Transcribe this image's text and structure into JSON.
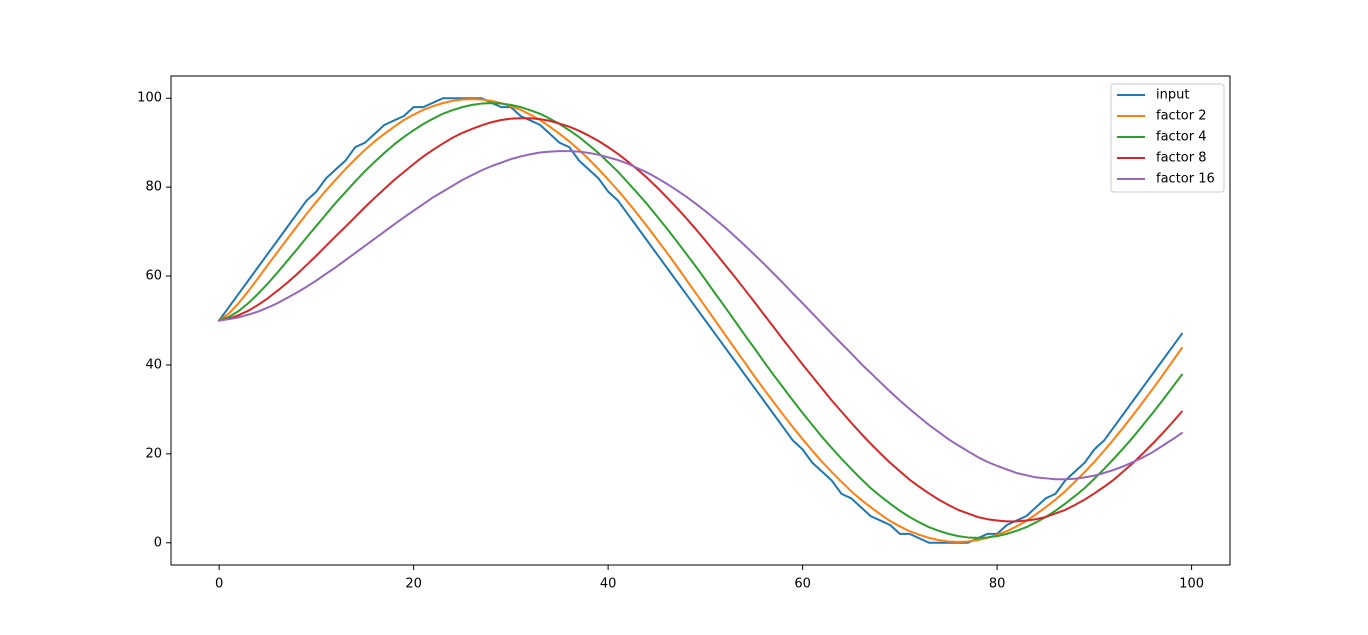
{
  "chart_data": {
    "type": "line",
    "x": [
      0,
      1,
      2,
      3,
      4,
      5,
      6,
      7,
      8,
      9,
      10,
      11,
      12,
      13,
      14,
      15,
      16,
      17,
      18,
      19,
      20,
      21,
      22,
      23,
      24,
      25,
      26,
      27,
      28,
      29,
      30,
      31,
      32,
      33,
      34,
      35,
      36,
      37,
      38,
      39,
      40,
      41,
      42,
      43,
      44,
      45,
      46,
      47,
      48,
      49,
      50,
      51,
      52,
      53,
      54,
      55,
      56,
      57,
      58,
      59,
      60,
      61,
      62,
      63,
      64,
      65,
      66,
      67,
      68,
      69,
      70,
      71,
      72,
      73,
      74,
      75,
      76,
      77,
      78,
      79,
      80,
      81,
      82,
      83,
      84,
      85,
      86,
      87,
      88,
      89,
      90,
      91,
      92,
      93,
      94,
      95,
      96,
      97,
      98,
      99
    ],
    "series": [
      {
        "name": "input",
        "color": "#1f77b4",
        "values": [
          50,
          53,
          56,
          59,
          62,
          65,
          68,
          71,
          74,
          77,
          79,
          82,
          84,
          86,
          89,
          90,
          92,
          94,
          95,
          96,
          98,
          98,
          99,
          100,
          100,
          100,
          100,
          100,
          99,
          98,
          98,
          96,
          95,
          94,
          92,
          90,
          89,
          86,
          84,
          82,
          79,
          77,
          74,
          71,
          68,
          65,
          62,
          59,
          56,
          53,
          50,
          47,
          44,
          41,
          38,
          35,
          32,
          29,
          26,
          23,
          21,
          18,
          16,
          14,
          11,
          10,
          8,
          6,
          5,
          4,
          2,
          2,
          1,
          0,
          0,
          0,
          0,
          0,
          1,
          2,
          2,
          4,
          5,
          6,
          8,
          10,
          11,
          14,
          16,
          18,
          21,
          23,
          26,
          29,
          32,
          35,
          38,
          41,
          44,
          47
        ]
      },
      {
        "name": "factor 2",
        "color": "#ff7f0e",
        "values": [
          50.0,
          51.6,
          53.9,
          56.6,
          59.5,
          62.5,
          65.4,
          68.3,
          71.2,
          74.0,
          76.7,
          79.3,
          81.7,
          84.1,
          86.3,
          88.4,
          90.3,
          92.0,
          93.6,
          95.1,
          96.3,
          97.4,
          98.2,
          98.9,
          99.4,
          99.7,
          99.8,
          99.7,
          99.4,
          98.9,
          98.2,
          97.4,
          96.3,
          95.1,
          93.6,
          92.0,
          90.3,
          88.4,
          86.3,
          84.1,
          81.7,
          79.3,
          76.7,
          74.0,
          71.2,
          68.3,
          65.4,
          62.4,
          59.3,
          56.2,
          53.1,
          50.0,
          46.9,
          43.8,
          40.7,
          37.6,
          34.6,
          31.7,
          28.8,
          26.0,
          23.3,
          20.7,
          18.2,
          15.9,
          13.7,
          11.6,
          9.7,
          8.0,
          6.4,
          4.9,
          3.7,
          2.6,
          1.8,
          1.1,
          0.6,
          0.3,
          0.2,
          0.3,
          0.6,
          1.1,
          1.8,
          2.6,
          3.7,
          4.9,
          6.4,
          8.0,
          9.7,
          11.6,
          13.7,
          15.9,
          18.2,
          20.7,
          23.3,
          26.0,
          28.8,
          31.7,
          34.6,
          37.6,
          40.7,
          43.8
        ]
      },
      {
        "name": "factor 4",
        "color": "#2ca02c",
        "values": [
          50.0,
          50.8,
          52.1,
          53.9,
          56.0,
          58.3,
          60.8,
          63.4,
          66.0,
          68.7,
          71.3,
          73.9,
          76.5,
          78.9,
          81.3,
          83.6,
          85.7,
          87.7,
          89.6,
          91.3,
          92.8,
          94.2,
          95.4,
          96.5,
          97.3,
          98.0,
          98.5,
          98.8,
          98.9,
          98.8,
          98.5,
          98.0,
          97.3,
          96.5,
          95.4,
          94.2,
          92.8,
          91.3,
          89.5,
          87.7,
          85.6,
          83.5,
          81.1,
          78.7,
          76.2,
          73.5,
          70.8,
          68.0,
          65.1,
          62.2,
          59.2,
          56.1,
          53.1,
          50.0,
          46.9,
          43.9,
          40.8,
          37.8,
          34.9,
          32.0,
          29.2,
          26.5,
          23.8,
          21.3,
          18.9,
          16.6,
          14.4,
          12.3,
          10.5,
          8.8,
          7.2,
          5.8,
          4.6,
          3.5,
          2.7,
          2.0,
          1.5,
          1.2,
          1.1,
          1.2,
          1.5,
          2.0,
          2.7,
          3.5,
          4.6,
          5.8,
          7.2,
          8.8,
          10.5,
          12.3,
          14.4,
          16.6,
          18.9,
          21.3,
          23.8,
          26.5,
          29.2,
          32.0,
          34.9,
          37.8
        ]
      },
      {
        "name": "factor 8",
        "color": "#d62728",
        "values": [
          50.0,
          50.4,
          51.2,
          52.2,
          53.5,
          55.0,
          56.7,
          58.5,
          60.4,
          62.5,
          64.6,
          66.8,
          69.0,
          71.1,
          73.3,
          75.5,
          77.6,
          79.6,
          81.6,
          83.4,
          85.2,
          86.9,
          88.4,
          89.8,
          91.1,
          92.2,
          93.1,
          93.9,
          94.6,
          95.1,
          95.4,
          95.5,
          95.5,
          95.3,
          94.9,
          94.3,
          93.6,
          92.7,
          91.6,
          90.4,
          89.0,
          87.5,
          85.8,
          84.0,
          82.1,
          80.0,
          77.8,
          75.5,
          73.1,
          70.6,
          68.0,
          65.3,
          62.6,
          59.9,
          57.1,
          54.3,
          51.4,
          48.6,
          45.7,
          42.9,
          40.1,
          37.4,
          34.7,
          32.0,
          29.5,
          27.0,
          24.6,
          22.3,
          20.1,
          18.0,
          16.1,
          14.2,
          12.6,
          11.1,
          9.7,
          8.5,
          7.4,
          6.6,
          5.8,
          5.3,
          5.0,
          4.8,
          4.8,
          5.0,
          5.3,
          5.8,
          6.6,
          7.4,
          8.5,
          9.7,
          11.1,
          12.6,
          14.2,
          16.1,
          18.0,
          20.1,
          22.3,
          24.6,
          27.0,
          29.5
        ]
      },
      {
        "name": "factor 16",
        "color": "#9467bd",
        "values": [
          50.0,
          50.3,
          50.7,
          51.3,
          52.0,
          52.9,
          53.9,
          55.1,
          56.3,
          57.6,
          59.0,
          60.5,
          62.0,
          63.6,
          65.2,
          66.8,
          68.4,
          70.0,
          71.6,
          73.2,
          74.7,
          76.2,
          77.7,
          79.0,
          80.3,
          81.6,
          82.7,
          83.8,
          84.7,
          85.5,
          86.3,
          86.9,
          87.4,
          87.8,
          88.0,
          88.1,
          88.1,
          88.0,
          87.7,
          87.3,
          86.7,
          86.1,
          85.3,
          84.3,
          83.3,
          82.1,
          80.8,
          79.4,
          77.9,
          76.3,
          74.6,
          72.8,
          71.0,
          69.0,
          67.0,
          64.9,
          62.8,
          60.6,
          58.4,
          56.1,
          53.9,
          51.6,
          49.3,
          47.0,
          44.8,
          42.6,
          40.3,
          38.2,
          36.1,
          34.0,
          32.0,
          30.1,
          28.3,
          26.5,
          24.9,
          23.3,
          21.9,
          20.6,
          19.3,
          18.2,
          17.3,
          16.5,
          15.7,
          15.2,
          14.7,
          14.5,
          14.3,
          14.3,
          14.4,
          14.7,
          15.1,
          15.7,
          16.4,
          17.2,
          18.2,
          19.2,
          20.4,
          21.8,
          23.2,
          24.7
        ]
      }
    ],
    "xlim": [
      -4.95,
      103.95
    ],
    "xticks": [
      0,
      20,
      40,
      60,
      80,
      100
    ],
    "ylim": [
      -5,
      105
    ],
    "yticks": [
      0,
      20,
      40,
      60,
      80,
      100
    ],
    "legend": "upper right"
  }
}
